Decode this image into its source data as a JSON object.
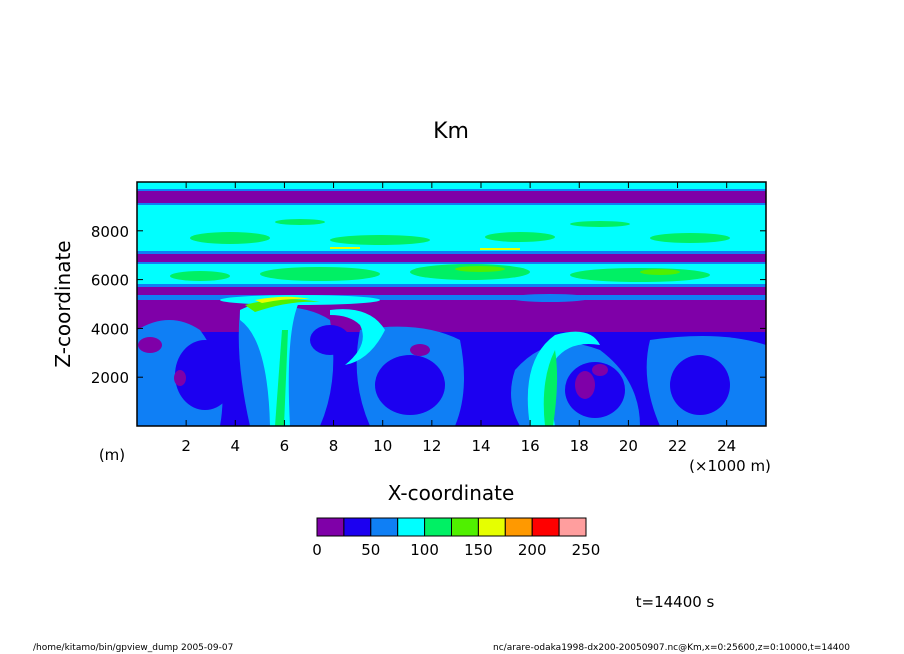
{
  "chart_data": {
    "type": "heatmap",
    "title": "Km",
    "xlabel": "X-coordinate",
    "ylabel": "Z-coordinate",
    "x_unit_label": "(×1000 m)",
    "y_unit_label": "(m)",
    "xlim": [
      0,
      25600
    ],
    "ylim": [
      0,
      10000
    ],
    "x_ticks": [
      2,
      4,
      6,
      8,
      10,
      12,
      14,
      16,
      18,
      20,
      22,
      24
    ],
    "y_ticks": [
      2000,
      4000,
      6000,
      8000
    ],
    "colorbar": {
      "levels": [
        0,
        25,
        50,
        75,
        100,
        125,
        150,
        175,
        200,
        225,
        250
      ],
      "tick_labels": [
        "0",
        "50",
        "100",
        "150",
        "200",
        "250"
      ],
      "colors": [
        "#7f00a8",
        "#1c00f0",
        "#0f7ff5",
        "#00ffff",
        "#00f064",
        "#50f000",
        "#e6ff00",
        "#ff9900",
        "#ff0000",
        "#ff9e9e"
      ]
    },
    "bands": [
      {
        "z": [
          9600,
          10000
        ],
        "level": "cyan",
        "value": 90
      },
      {
        "z": [
          8900,
          9600
        ],
        "level": "purple",
        "value": 10
      },
      {
        "z": [
          7000,
          8900
        ],
        "level": "cyan",
        "value": 95
      },
      {
        "z": [
          6500,
          7000
        ],
        "level": "purple",
        "value": 10
      },
      {
        "z": [
          5600,
          6500
        ],
        "level": "cyan-green",
        "value": 110
      },
      {
        "z": [
          4200,
          5600
        ],
        "level": "purple",
        "value": 15
      },
      {
        "z": [
          0,
          4200
        ],
        "level": "blue",
        "value": 40
      }
    ]
  },
  "time_label": "t=14400 s",
  "footer_left": "/home/kitamo/bin/gpview_dump  2005-09-07",
  "footer_right": "nc/arare-odaka1998-dx200-20050907.nc@Km,x=0:25600,z=0:10000,t=14400"
}
